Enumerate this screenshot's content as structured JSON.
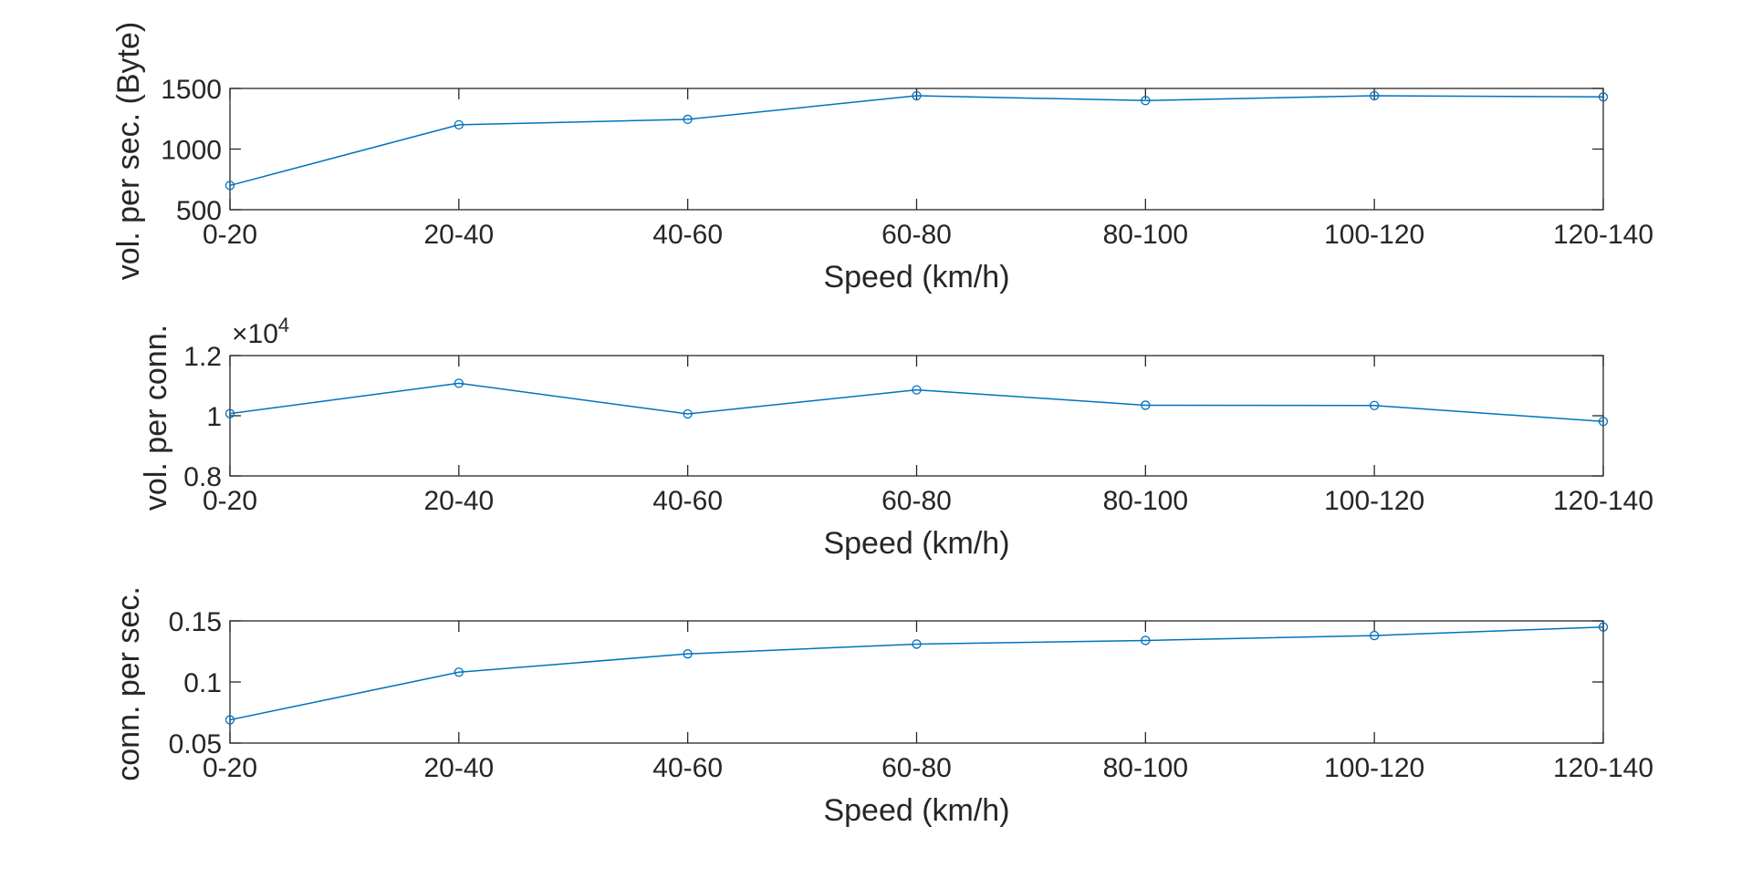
{
  "colors": {
    "series": "#0072BD",
    "axes": "#262626",
    "background": "#ffffff"
  },
  "chart_data": [
    {
      "type": "line",
      "categories": [
        "0-20",
        "20-40",
        "40-60",
        "60-80",
        "80-100",
        "100-120",
        "120-140"
      ],
      "values": [
        700,
        1200,
        1245,
        1440,
        1400,
        1440,
        1430
      ],
      "xlabel": "Speed (km/h)",
      "ylabel": "vol. per sec. (Byte)",
      "ylim": [
        500,
        1500
      ],
      "yticks": [
        "500",
        "1000",
        "1500"
      ],
      "marker": "circle",
      "grid": false
    },
    {
      "type": "line",
      "categories": [
        "0-20",
        "20-40",
        "40-60",
        "60-80",
        "80-100",
        "100-120",
        "120-140"
      ],
      "values": [
        10070,
        11080,
        10060,
        10860,
        10350,
        10340,
        9810
      ],
      "xlabel": "Speed (km/h)",
      "ylabel": "vol. per conn.",
      "ylim": [
        8000,
        12000
      ],
      "yticks": [
        "0.8",
        "1",
        "1.2"
      ],
      "exponent": {
        "prefix": "×10",
        "power": "4"
      },
      "marker": "circle",
      "grid": false
    },
    {
      "type": "line",
      "categories": [
        "0-20",
        "20-40",
        "40-60",
        "60-80",
        "80-100",
        "100-120",
        "120-140"
      ],
      "values": [
        0.069,
        0.108,
        0.123,
        0.131,
        0.134,
        0.138,
        0.145
      ],
      "xlabel": "Speed (km/h)",
      "ylabel": "conn. per sec.",
      "ylim": [
        0.05,
        0.15
      ],
      "yticks": [
        "0.05",
        "0.1",
        "0.15"
      ],
      "marker": "circle",
      "grid": false
    }
  ]
}
